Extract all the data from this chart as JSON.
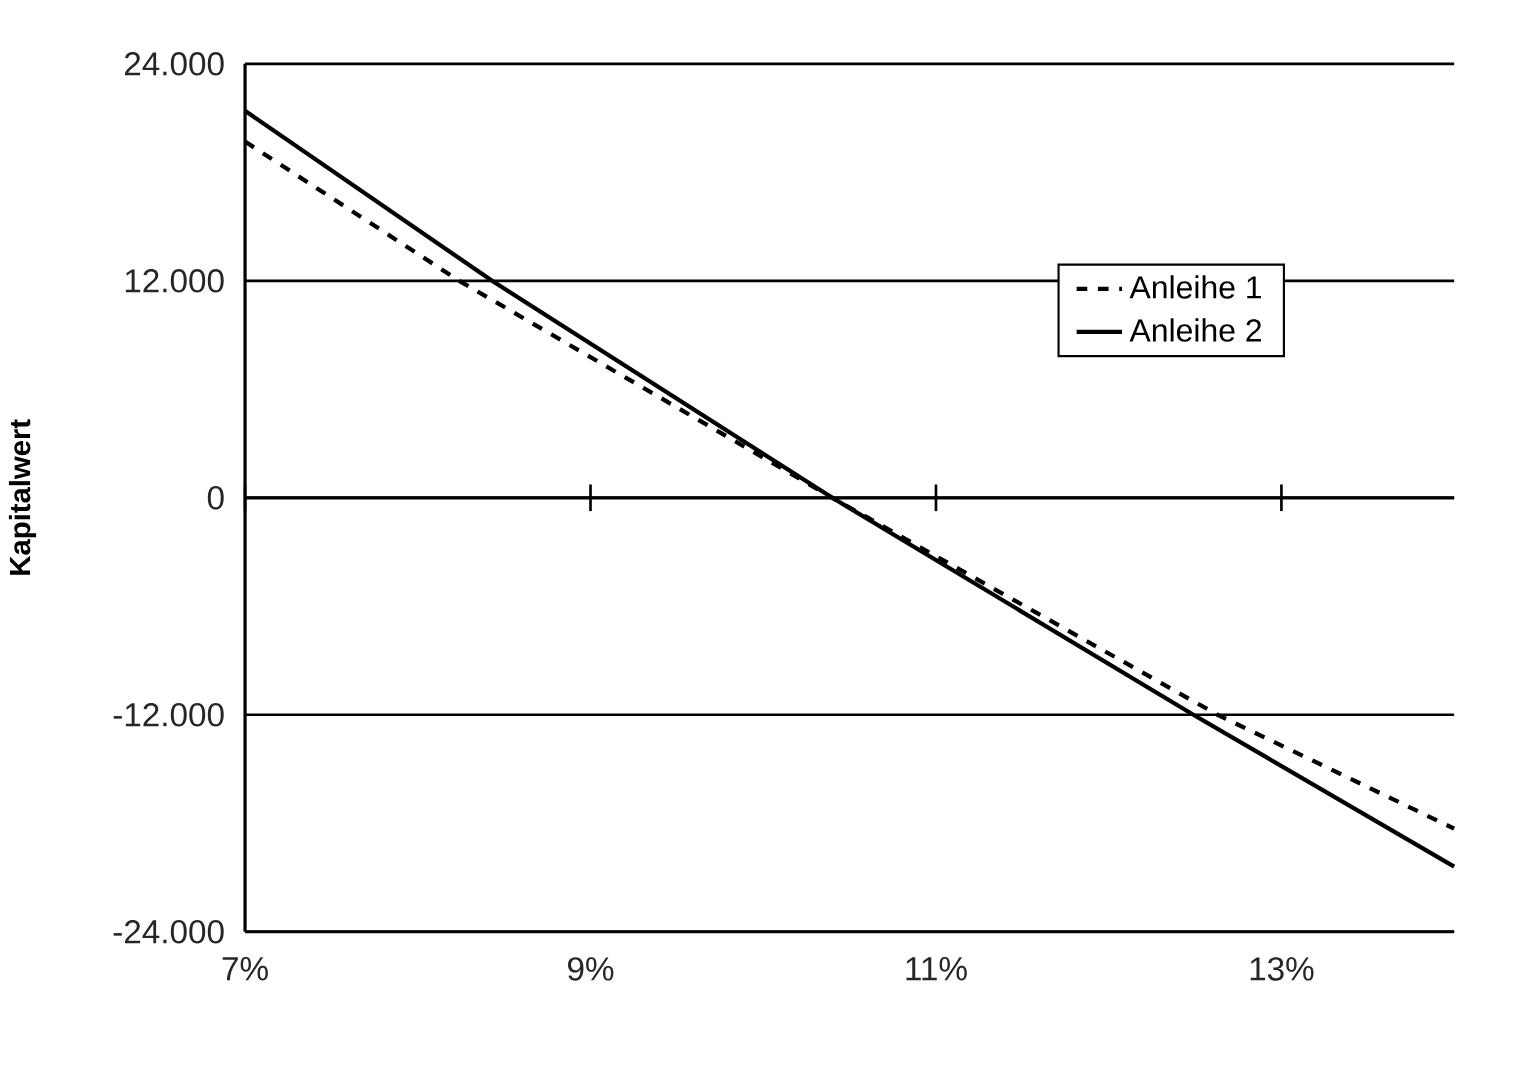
{
  "chart_data": {
    "type": "line",
    "ylabel": "Kapitalwert",
    "xlim": [
      7,
      14
    ],
    "ylim": [
      -24000,
      24000
    ],
    "xticks": [
      {
        "value": 7,
        "label": "7%"
      },
      {
        "value": 9,
        "label": "9%"
      },
      {
        "value": 11,
        "label": "11%"
      },
      {
        "value": 13,
        "label": "13%"
      }
    ],
    "yticks": [
      {
        "value": -24000,
        "label": "-24.000"
      },
      {
        "value": -12000,
        "label": "-12.000"
      },
      0,
      {
        "value": 12000,
        "label": "12.000"
      },
      {
        "value": 24000,
        "label": "24.000"
      }
    ],
    "grid": "y",
    "legend": "right",
    "marker": "none",
    "series": [
      {
        "name": "Anleihe 1",
        "color": "#000000",
        "line_style": "dashed",
        "x": [
          7,
          8.24,
          10.4,
          12.63,
          14
        ],
        "values": [
          19700,
          12000,
          0,
          -12000,
          -18300
        ]
      },
      {
        "name": "Anleihe 2",
        "color": "#000000",
        "line_style": "solid",
        "x": [
          7,
          8.43,
          10.4,
          12.49,
          14
        ],
        "values": [
          21400,
          12000,
          0,
          -12000,
          -20400
        ]
      }
    ]
  }
}
